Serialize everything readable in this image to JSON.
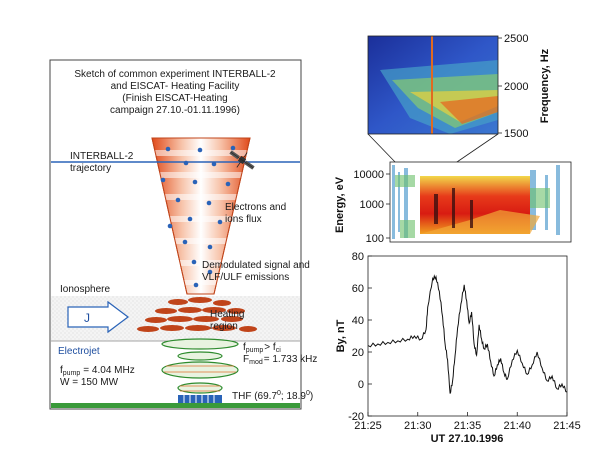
{
  "sketch": {
    "title_lines": [
      "Sketch of common experiment INTERBALL-2",
      "and EISCAT- Heating Facility",
      "(Finish EISCAT-Heating",
      "campaign 27.10.-01.11.1996)"
    ],
    "trajectory_lines": [
      "INTERBALL-2",
      "trajectory"
    ],
    "flux_lines": [
      "Electrons and",
      "ions flux"
    ],
    "signal_lines": [
      "Demodulated signal and",
      "VLF/ULF emissions"
    ],
    "ionosphere": "Ionosphere",
    "current_symbol": "J",
    "heating_lines": [
      "Heating",
      "region"
    ],
    "electrojet": "Electrojet",
    "fmod_line": "F",
    "fmod_sub": "mod",
    "fmod_val": "= 1.733 kHz",
    "fpump_f": "f",
    "fpump_sub": "pump",
    "fpump_gt": "> f",
    "fpump_sub2": "ci",
    "freq_f": "f",
    "freq_sub": "pump",
    "freq_val": "= 4.04 MHz",
    "power": "W   = 150 MW",
    "thf": "THF (69.7",
    "thf_deg1": "0",
    "thf_mid": "; 18.9",
    "thf_deg2": "0",
    "thf_end": ")"
  },
  "spectrogram": {
    "ylabel": "Frequency, Hz",
    "yticks": [
      "2500",
      "2000",
      "1500"
    ]
  },
  "energy_panel": {
    "ylabel": "Energy, eV",
    "yticks": [
      "10000",
      "1000",
      "100"
    ]
  },
  "chart_data": {
    "type": "line",
    "title": "",
    "xlabel": "UT 27.10.1996",
    "ylabel": "By, nT",
    "xticks": [
      "21:25",
      "21:30",
      "21:35",
      "21:40",
      "21:45"
    ],
    "yticks": [
      "-20",
      "0",
      "20",
      "40",
      "60",
      "80"
    ],
    "xlim": [
      "21:25",
      "21:45"
    ],
    "ylim": [
      -20,
      80
    ],
    "series": [
      {
        "x": [
          "21:25:00",
          "21:26:00",
          "21:27:00",
          "21:28:00",
          "21:29:00",
          "21:29:40",
          "21:30:20",
          "21:30:50",
          "21:31:00",
          "21:31:30",
          "21:31:50",
          "21:32:10",
          "21:32:30",
          "21:32:45",
          "21:33:00",
          "21:33:15",
          "21:33:30",
          "21:33:45",
          "21:34:00",
          "21:34:20",
          "21:34:40",
          "21:34:55",
          "21:35:10",
          "21:35:25",
          "21:35:40",
          "21:35:55",
          "21:36:10",
          "21:36:25",
          "21:36:40",
          "21:37:00",
          "21:37:20",
          "21:37:40",
          "21:38:00",
          "21:38:20",
          "21:38:40",
          "21:39:00",
          "21:39:30",
          "21:40:00",
          "21:40:30",
          "21:41:00",
          "21:41:30",
          "21:42:00",
          "21:42:30",
          "21:43:00",
          "21:43:30",
          "21:44:00",
          "21:44:30",
          "21:45:00"
        ],
        "values": [
          24,
          25,
          26,
          27,
          28,
          30,
          28,
          34,
          48,
          66,
          67,
          58,
          42,
          25,
          15,
          -6,
          2,
          18,
          35,
          50,
          62,
          52,
          38,
          45,
          25,
          18,
          37,
          28,
          22,
          25,
          14,
          5,
          12,
          16,
          7,
          3,
          15,
          21,
          13,
          6,
          12,
          20,
          10,
          2,
          5,
          -3,
          0,
          -5
        ]
      }
    ]
  }
}
